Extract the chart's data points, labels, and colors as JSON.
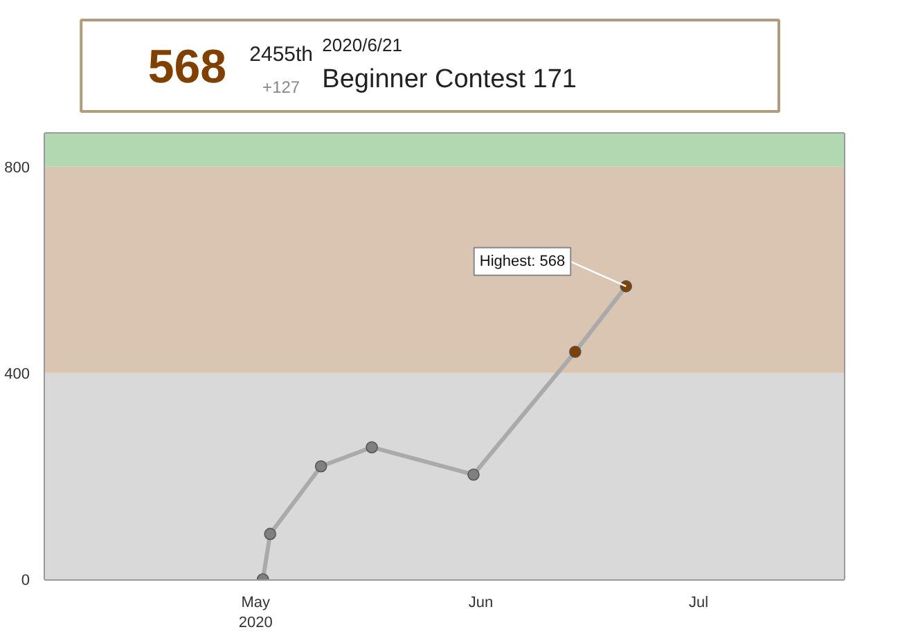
{
  "chart_data": {
    "type": "line",
    "title": "Beginner Contest 171",
    "subtitle": "2020/6/21",
    "annotations": [
      "568",
      "2455th",
      "+127",
      {
        "text": "Highest: 568",
        "x": "2020-06-21",
        "y": 568
      }
    ],
    "x": [
      "2020-05-02",
      "2020-05-03",
      "2020-05-10",
      "2020-05-17",
      "2020-05-31",
      "2020-06-14",
      "2020-06-21"
    ],
    "series": [
      {
        "color": "#aaaaaa",
        "values": [
          0,
          88,
          219,
          256,
          203,
          441,
          568
        ],
        "colors": [
          "#808080",
          "#808080",
          "#808080",
          "#808080",
          "#808080",
          "#804000",
          "#804000"
        ]
      }
    ],
    "xlim": [
      "2020-04-02",
      "2020-07-21"
    ],
    "xticks": [
      {
        "value": "2020-05-01",
        "label": "May\n2020"
      },
      {
        "value": "2020-06-01",
        "label": "Jun"
      },
      {
        "value": "2020-07-01",
        "label": "Jul"
      }
    ],
    "ylim": [
      0,
      864
    ],
    "yticks": [
      0,
      400,
      800
    ],
    "bands": [
      {
        "axis": "y",
        "from": 0,
        "to": 400,
        "color": "#d9d9d9"
      },
      {
        "axis": "y",
        "from": 400,
        "to": 800,
        "color": "#d9c5b2"
      },
      {
        "axis": "y",
        "from": 800,
        "to": 864,
        "color": "#b2d8b2"
      }
    ],
    "grid": true,
    "marker": "circle",
    "line_style": "solid"
  }
}
